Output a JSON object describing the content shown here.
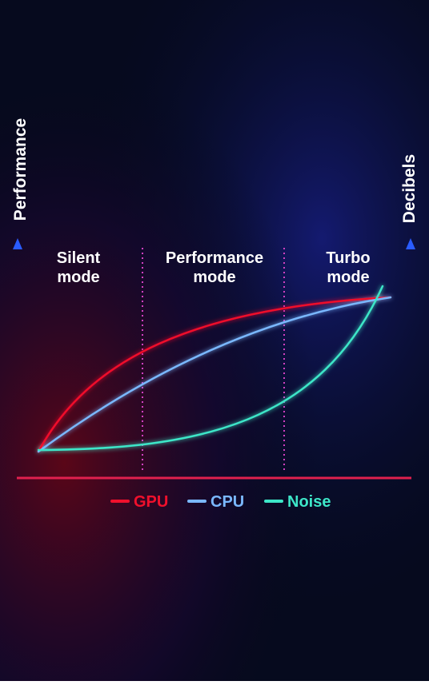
{
  "y_axis_label": "Performance",
  "y2_axis_label": "Decibels",
  "modes": [
    {
      "line1": "Silent",
      "line2": "mode"
    },
    {
      "line1": "Performance",
      "line2": "mode"
    },
    {
      "line1": "Turbo",
      "line2": "mode"
    }
  ],
  "legend": [
    {
      "name": "GPU",
      "color": "#f0102c"
    },
    {
      "name": "CPU",
      "color": "#7ab8ff"
    },
    {
      "name": "Noise",
      "color": "#3de6c8"
    }
  ]
}
